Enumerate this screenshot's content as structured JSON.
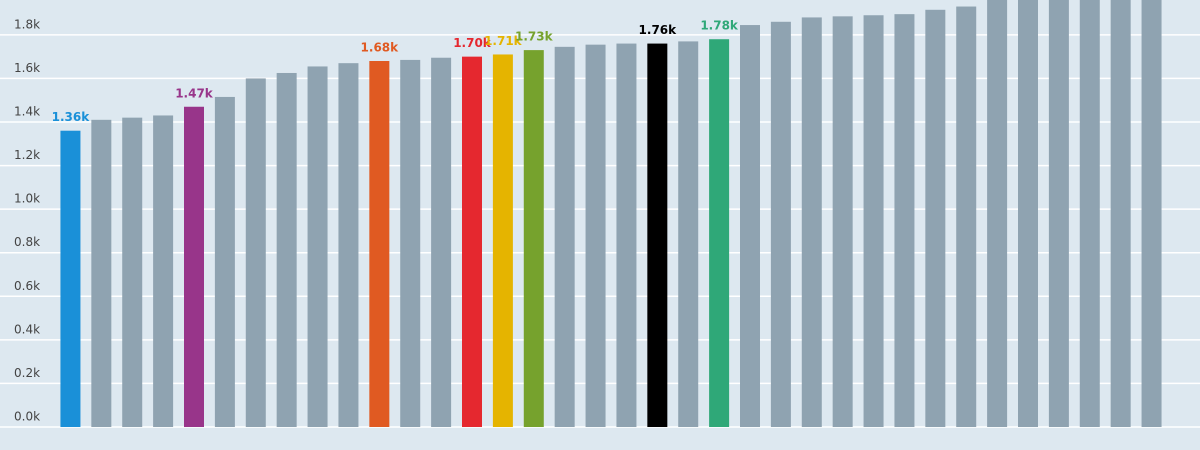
{
  "chart_data": {
    "type": "bar",
    "categories": [
      null,
      null,
      null,
      null,
      null,
      null,
      null,
      null,
      null,
      null,
      null,
      null,
      null,
      null,
      null,
      null,
      null,
      null,
      null,
      null,
      null,
      null,
      null,
      null,
      null,
      null,
      null,
      null,
      null,
      null,
      null,
      null,
      null,
      null,
      null,
      null
    ],
    "values": [
      1360,
      1410,
      1420,
      1430,
      1470,
      1515,
      1600,
      1625,
      1655,
      1670,
      1680,
      1685,
      1695,
      1700,
      1710,
      1730,
      1745,
      1755,
      1760,
      1760,
      1770,
      1780,
      1845,
      1860,
      1880,
      1885,
      1890,
      1895,
      1915,
      1930,
      2000,
      2010,
      2020,
      2030,
      2040,
      2050
    ],
    "value_labels": [
      "1.36k",
      null,
      null,
      null,
      "1.47k",
      null,
      null,
      null,
      null,
      null,
      "1.68k",
      null,
      null,
      "1.70k",
      "1.71k",
      "1.73k",
      null,
      null,
      null,
      "1.76k",
      null,
      "1.78k",
      null,
      null,
      null,
      null,
      null,
      null,
      null,
      null,
      null,
      null,
      null,
      null,
      null,
      null
    ],
    "colors": [
      "#1a90d8",
      "#8fa3b1",
      "#8fa3b1",
      "#8fa3b1",
      "#98358a",
      "#8fa3b1",
      "#8fa3b1",
      "#8fa3b1",
      "#8fa3b1",
      "#8fa3b1",
      "#e05a22",
      "#8fa3b1",
      "#8fa3b1",
      "#e5282f",
      "#e5b400",
      "#76a22d",
      "#8fa3b1",
      "#8fa3b1",
      "#8fa3b1",
      "#000000",
      "#8fa3b1",
      "#2fa878",
      "#8fa3b1",
      "#8fa3b1",
      "#8fa3b1",
      "#8fa3b1",
      "#8fa3b1",
      "#8fa3b1",
      "#8fa3b1",
      "#8fa3b1",
      "#8fa3b1",
      "#8fa3b1",
      "#8fa3b1",
      "#8fa3b1",
      "#8fa3b1",
      "#8fa3b1"
    ],
    "ylim": [
      0,
      1960
    ],
    "yticks": [
      {
        "value": 0,
        "label": "0.0k"
      },
      {
        "value": 200,
        "label": "0.2k"
      },
      {
        "value": 400,
        "label": "0.4k"
      },
      {
        "value": 600,
        "label": "0.6k"
      },
      {
        "value": 800,
        "label": "0.8k"
      },
      {
        "value": 1000,
        "label": "1.0k"
      },
      {
        "value": 1200,
        "label": "1.2k"
      },
      {
        "value": 1400,
        "label": "1.4k"
      },
      {
        "value": 1600,
        "label": "1.6k"
      },
      {
        "value": 1800,
        "label": "1.8k"
      }
    ],
    "grid": true
  }
}
